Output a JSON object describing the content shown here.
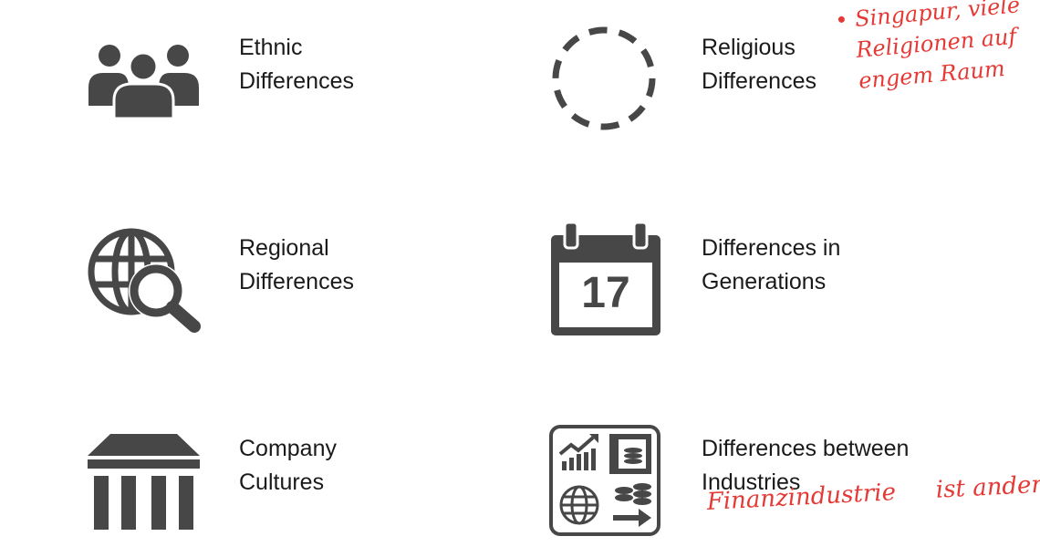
{
  "colors": {
    "icon": "#474747",
    "text": "#1a1a1a",
    "ink": "#e53935"
  },
  "items": [
    {
      "key": "ethnic",
      "icon": "people-group-icon",
      "line1": "Ethnic",
      "line2": "Differences"
    },
    {
      "key": "religious",
      "icon": "dashed-circle-icon",
      "line1": "Religious",
      "line2": "Differences"
    },
    {
      "key": "regional",
      "icon": "globe-search-icon",
      "line1": "Regional",
      "line2": "Differences"
    },
    {
      "key": "generations",
      "icon": "calendar-icon",
      "line1": "Differences in",
      "line2": "Generations",
      "calendar_day": "17"
    },
    {
      "key": "company",
      "icon": "building-columns-icon",
      "line1": "Company",
      "line2": "Cultures"
    },
    {
      "key": "industries",
      "icon": "finance-dashboard-icon",
      "line1": "Differences between",
      "line2": "Industries"
    }
  ],
  "annotations": {
    "religious_note": {
      "bullet": "•",
      "lines": [
        "Singapur, viele",
        "Religionen auf",
        "engem Raum"
      ]
    },
    "industries_note": {
      "line1": "Finanzindustrie",
      "line2": "ist anders"
    }
  }
}
